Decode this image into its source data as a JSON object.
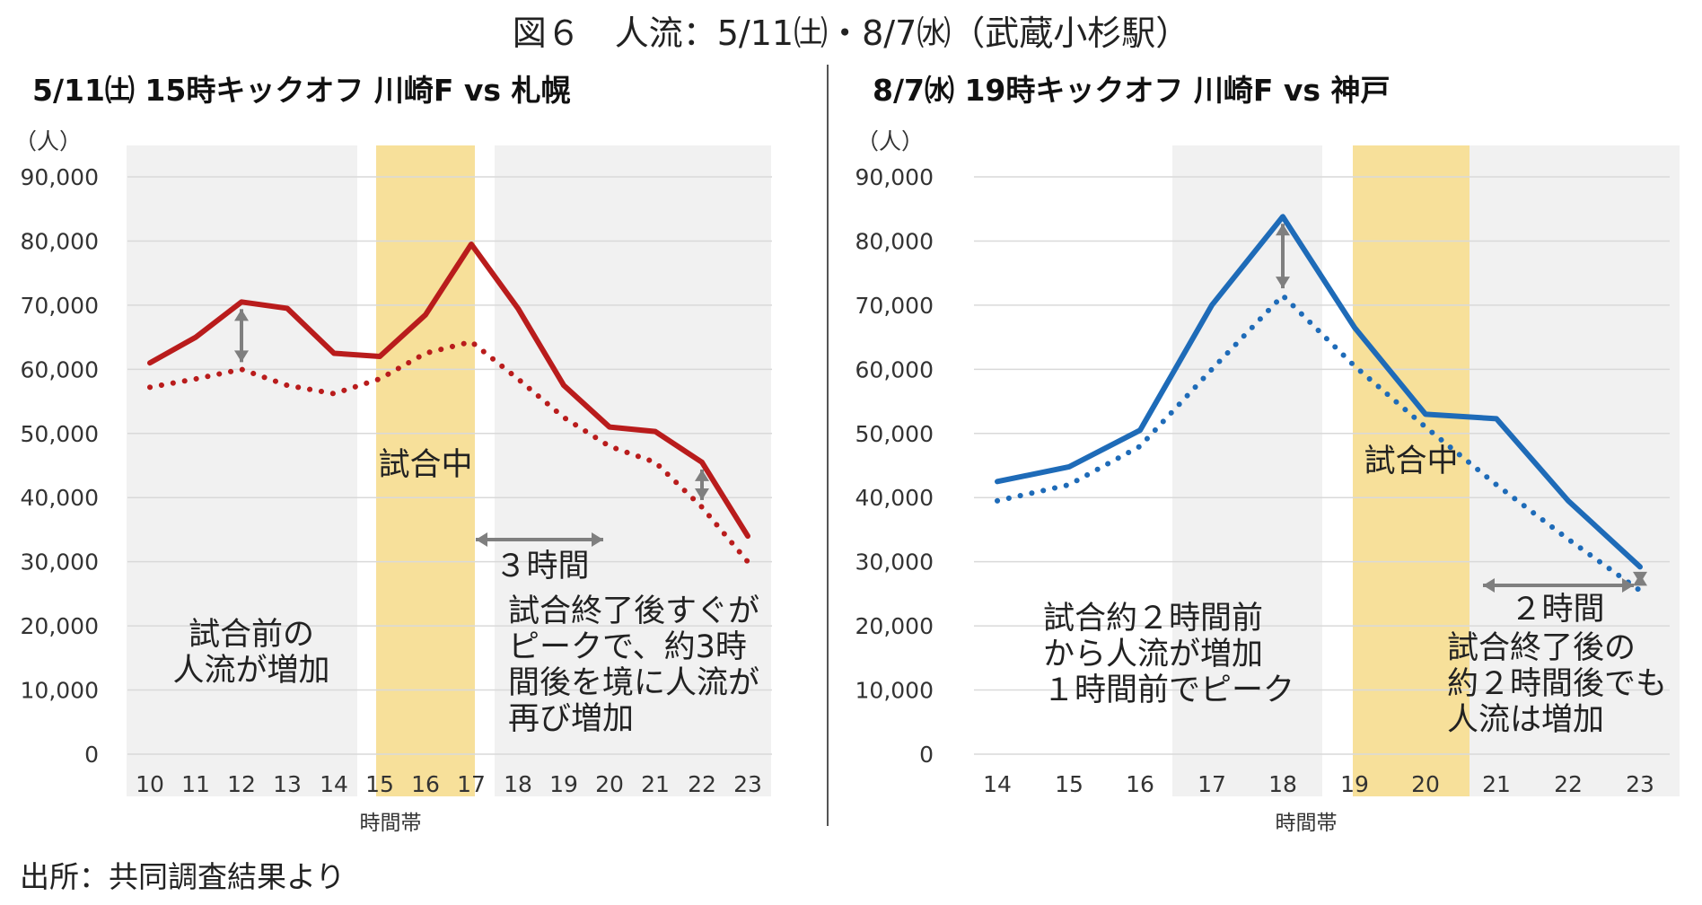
{
  "title": "図６　人流：5/11㈯・8/7㈬（武蔵小杉駅）",
  "source": "出所：共同調査結果より",
  "colors": {
    "red": "#b91c1c",
    "blue": "#1e6bb8",
    "band": "#f7e09a",
    "shade": "#f1f1f1",
    "arrow": "#7f7f7f"
  },
  "chart_data": [
    {
      "type": "line",
      "title": "5/11㈯ 15時キックオフ 川崎F vs 札幌",
      "xlabel": "時間帯",
      "ylabel": "（人）",
      "ylim": [
        0,
        90000
      ],
      "yticks": [
        "0",
        "10,000",
        "20,000",
        "30,000",
        "40,000",
        "50,000",
        "60,000",
        "70,000",
        "80,000",
        "90,000"
      ],
      "x": [
        "10",
        "11",
        "12",
        "13",
        "14",
        "15",
        "16",
        "17",
        "18",
        "19",
        "20",
        "21",
        "22",
        "23"
      ],
      "series": [
        {
          "style": "solid",
          "color": "#b91c1c",
          "values": [
            61000,
            65000,
            70500,
            69500,
            62500,
            62000,
            68500,
            79500,
            69500,
            57500,
            51000,
            50300,
            45500,
            34000
          ]
        },
        {
          "style": "dotted",
          "color": "#b91c1c",
          "values": [
            57200,
            58500,
            60000,
            57500,
            56200,
            58500,
            62500,
            64300,
            58500,
            52500,
            48000,
            45500,
            38500,
            30000
          ]
        }
      ],
      "highlight_band": {
        "from": "15",
        "to": "17",
        "label": "試合中"
      },
      "shaded_regions": [
        [
          "10",
          "14"
        ],
        [
          "18",
          "20"
        ],
        [
          "21",
          "23"
        ]
      ],
      "annotations": [
        {
          "text": [
            "試合前の",
            "人流が増加"
          ]
        },
        {
          "text": [
            "３時間"
          ]
        },
        {
          "text": [
            "試合終了後すぐが",
            "ピークで、約3時",
            "間後を境に人流が",
            "再び増加"
          ]
        }
      ]
    },
    {
      "type": "line",
      "title": "8/7㈬ 19時キックオフ 川崎F vs 神戸",
      "xlabel": "時間帯",
      "ylabel": "（人）",
      "ylim": [
        0,
        90000
      ],
      "yticks": [
        "0",
        "10,000",
        "20,000",
        "30,000",
        "40,000",
        "50,000",
        "60,000",
        "70,000",
        "80,000",
        "90,000"
      ],
      "x": [
        "14",
        "15",
        "16",
        "17",
        "18",
        "19",
        "20",
        "21",
        "22",
        "23"
      ],
      "series": [
        {
          "style": "solid",
          "color": "#1e6bb8",
          "values": [
            42500,
            44800,
            50500,
            70000,
            83800,
            66500,
            53000,
            52300,
            39500,
            29200
          ]
        },
        {
          "style": "dotted",
          "color": "#1e6bb8",
          "values": [
            39500,
            42000,
            48000,
            60000,
            71500,
            60500,
            51000,
            42000,
            33500,
            25500
          ]
        }
      ],
      "highlight_band": {
        "from": "19",
        "to": "20",
        "label": "試合中"
      },
      "shaded_regions": [
        [
          "17",
          "18"
        ],
        [
          "21",
          "23"
        ]
      ],
      "annotations": [
        {
          "text": [
            "試合約２時間前",
            "から人流が増加",
            "１時間前でピーク"
          ]
        },
        {
          "text": [
            "２時間"
          ]
        },
        {
          "text": [
            "試合終了後の",
            "約２時間後でも",
            "人流は増加"
          ]
        }
      ]
    }
  ]
}
